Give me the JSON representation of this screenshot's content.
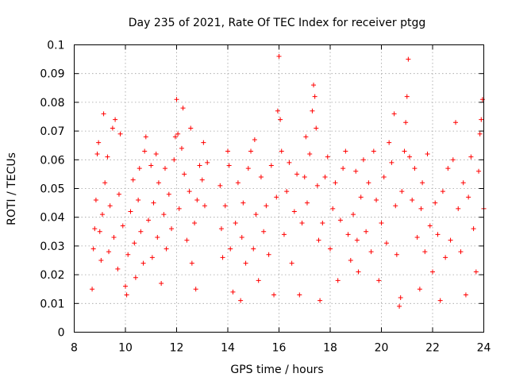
{
  "chart_data": {
    "type": "scatter",
    "title": "Day 235 of 2021, Rate Of TEC Index for receiver ptgg",
    "xlabel": "GPS time / hours",
    "ylabel": "ROTI / TECUs",
    "xlim": [
      8,
      24
    ],
    "ylim": [
      0,
      0.1
    ],
    "x_ticks": [
      8,
      10,
      12,
      14,
      16,
      18,
      20,
      22,
      24
    ],
    "x_tick_labels": [
      "8",
      "10",
      "12",
      "14",
      "16",
      "18",
      "20",
      "22",
      "24"
    ],
    "y_ticks": [
      0,
      0.01,
      0.02,
      0.03,
      0.04,
      0.05,
      0.06,
      0.07,
      0.08,
      0.09,
      0.1
    ],
    "y_tick_labels": [
      "0",
      "0.01",
      "0.02",
      "0.03",
      "0.04",
      "0.05",
      "0.06",
      "0.07",
      "0.08",
      "0.09",
      "0.1"
    ],
    "grid": true,
    "marker": "+",
    "marker_color": "#ff0000",
    "series": [
      {
        "points": [
          [
            8.7,
            0.015
          ],
          [
            8.75,
            0.029
          ],
          [
            8.8,
            0.036
          ],
          [
            8.85,
            0.046
          ],
          [
            8.9,
            0.062
          ],
          [
            8.95,
            0.066
          ],
          [
            9.0,
            0.035
          ],
          [
            9.05,
            0.025
          ],
          [
            9.1,
            0.041
          ],
          [
            9.15,
            0.076
          ],
          [
            9.2,
            0.052
          ],
          [
            9.3,
            0.061
          ],
          [
            9.35,
            0.028
          ],
          [
            9.4,
            0.044
          ],
          [
            9.5,
            0.071
          ],
          [
            9.55,
            0.033
          ],
          [
            9.6,
            0.074
          ],
          [
            9.7,
            0.022
          ],
          [
            9.75,
            0.048
          ],
          [
            9.8,
            0.069
          ],
          [
            9.9,
            0.037
          ],
          [
            10.0,
            0.016
          ],
          [
            10.05,
            0.013
          ],
          [
            10.1,
            0.027
          ],
          [
            10.2,
            0.042
          ],
          [
            10.3,
            0.053
          ],
          [
            10.35,
            0.031
          ],
          [
            10.4,
            0.019
          ],
          [
            10.5,
            0.046
          ],
          [
            10.55,
            0.057
          ],
          [
            10.6,
            0.035
          ],
          [
            10.7,
            0.024
          ],
          [
            10.75,
            0.063
          ],
          [
            10.8,
            0.068
          ],
          [
            10.9,
            0.039
          ],
          [
            11.0,
            0.058
          ],
          [
            11.05,
            0.026
          ],
          [
            11.1,
            0.045
          ],
          [
            11.2,
            0.062
          ],
          [
            11.25,
            0.033
          ],
          [
            11.3,
            0.052
          ],
          [
            11.4,
            0.017
          ],
          [
            11.5,
            0.041
          ],
          [
            11.55,
            0.057
          ],
          [
            11.6,
            0.029
          ],
          [
            11.7,
            0.048
          ],
          [
            11.8,
            0.036
          ],
          [
            11.9,
            0.06
          ],
          [
            11.95,
            0.068
          ],
          [
            12.0,
            0.081
          ],
          [
            12.05,
            0.069
          ],
          [
            12.1,
            0.043
          ],
          [
            12.2,
            0.064
          ],
          [
            12.25,
            0.078
          ],
          [
            12.3,
            0.055
          ],
          [
            12.4,
            0.032
          ],
          [
            12.5,
            0.049
          ],
          [
            12.55,
            0.071
          ],
          [
            12.6,
            0.024
          ],
          [
            12.7,
            0.038
          ],
          [
            12.75,
            0.015
          ],
          [
            12.8,
            0.046
          ],
          [
            12.9,
            0.058
          ],
          [
            13.0,
            0.053
          ],
          [
            13.05,
            0.066
          ],
          [
            13.1,
            0.044
          ],
          [
            13.2,
            0.059
          ],
          [
            13.7,
            0.051
          ],
          [
            13.75,
            0.036
          ],
          [
            13.8,
            0.026
          ],
          [
            13.9,
            0.044
          ],
          [
            14.0,
            0.063
          ],
          [
            14.05,
            0.058
          ],
          [
            14.1,
            0.029
          ],
          [
            14.2,
            0.014
          ],
          [
            14.3,
            0.038
          ],
          [
            14.4,
            0.052
          ],
          [
            14.5,
            0.011
          ],
          [
            14.55,
            0.033
          ],
          [
            14.6,
            0.045
          ],
          [
            14.7,
            0.024
          ],
          [
            14.8,
            0.057
          ],
          [
            14.9,
            0.063
          ],
          [
            15.0,
            0.029
          ],
          [
            15.05,
            0.067
          ],
          [
            15.1,
            0.041
          ],
          [
            15.2,
            0.018
          ],
          [
            15.3,
            0.054
          ],
          [
            15.4,
            0.035
          ],
          [
            15.5,
            0.044
          ],
          [
            15.6,
            0.027
          ],
          [
            15.7,
            0.058
          ],
          [
            15.8,
            0.013
          ],
          [
            15.9,
            0.047
          ],
          [
            15.95,
            0.077
          ],
          [
            16.0,
            0.096
          ],
          [
            16.05,
            0.074
          ],
          [
            16.1,
            0.063
          ],
          [
            16.2,
            0.034
          ],
          [
            16.3,
            0.049
          ],
          [
            16.4,
            0.059
          ],
          [
            16.5,
            0.024
          ],
          [
            16.6,
            0.042
          ],
          [
            16.7,
            0.055
          ],
          [
            16.8,
            0.013
          ],
          [
            16.9,
            0.038
          ],
          [
            17.0,
            0.054
          ],
          [
            17.05,
            0.068
          ],
          [
            17.1,
            0.045
          ],
          [
            17.2,
            0.062
          ],
          [
            17.3,
            0.077
          ],
          [
            17.35,
            0.086
          ],
          [
            17.4,
            0.082
          ],
          [
            17.45,
            0.071
          ],
          [
            17.5,
            0.051
          ],
          [
            17.55,
            0.032
          ],
          [
            17.6,
            0.011
          ],
          [
            17.7,
            0.038
          ],
          [
            17.8,
            0.054
          ],
          [
            17.9,
            0.061
          ],
          [
            18.0,
            0.029
          ],
          [
            18.1,
            0.043
          ],
          [
            18.2,
            0.052
          ],
          [
            18.3,
            0.018
          ],
          [
            18.4,
            0.039
          ],
          [
            18.5,
            0.057
          ],
          [
            18.6,
            0.063
          ],
          [
            18.7,
            0.034
          ],
          [
            18.8,
            0.025
          ],
          [
            18.9,
            0.041
          ],
          [
            19.0,
            0.056
          ],
          [
            19.05,
            0.032
          ],
          [
            19.1,
            0.021
          ],
          [
            19.2,
            0.047
          ],
          [
            19.3,
            0.06
          ],
          [
            19.4,
            0.035
          ],
          [
            19.5,
            0.052
          ],
          [
            19.6,
            0.028
          ],
          [
            19.7,
            0.063
          ],
          [
            19.8,
            0.046
          ],
          [
            19.9,
            0.018
          ],
          [
            20.0,
            0.038
          ],
          [
            20.1,
            0.054
          ],
          [
            20.2,
            0.031
          ],
          [
            20.3,
            0.066
          ],
          [
            20.4,
            0.059
          ],
          [
            20.5,
            0.076
          ],
          [
            20.55,
            0.044
          ],
          [
            20.6,
            0.027
          ],
          [
            20.7,
            0.009
          ],
          [
            20.75,
            0.012
          ],
          [
            20.8,
            0.049
          ],
          [
            20.9,
            0.063
          ],
          [
            20.95,
            0.073
          ],
          [
            21.0,
            0.082
          ],
          [
            21.05,
            0.095
          ],
          [
            21.1,
            0.061
          ],
          [
            21.2,
            0.046
          ],
          [
            21.3,
            0.057
          ],
          [
            21.4,
            0.033
          ],
          [
            21.5,
            0.015
          ],
          [
            21.55,
            0.043
          ],
          [
            21.6,
            0.052
          ],
          [
            21.7,
            0.028
          ],
          [
            21.8,
            0.062
          ],
          [
            21.9,
            0.037
          ],
          [
            22.0,
            0.021
          ],
          [
            22.1,
            0.045
          ],
          [
            22.2,
            0.034
          ],
          [
            22.3,
            0.011
          ],
          [
            22.4,
            0.049
          ],
          [
            22.5,
            0.026
          ],
          [
            22.6,
            0.057
          ],
          [
            22.7,
            0.032
          ],
          [
            22.8,
            0.06
          ],
          [
            22.9,
            0.073
          ],
          [
            23.0,
            0.043
          ],
          [
            23.1,
            0.028
          ],
          [
            23.2,
            0.052
          ],
          [
            23.3,
            0.013
          ],
          [
            23.4,
            0.047
          ],
          [
            23.5,
            0.061
          ],
          [
            23.6,
            0.036
          ],
          [
            23.7,
            0.021
          ],
          [
            23.8,
            0.056
          ],
          [
            23.85,
            0.069
          ],
          [
            23.9,
            0.074
          ],
          [
            23.95,
            0.081
          ],
          [
            24.0,
            0.043
          ]
        ]
      }
    ]
  }
}
